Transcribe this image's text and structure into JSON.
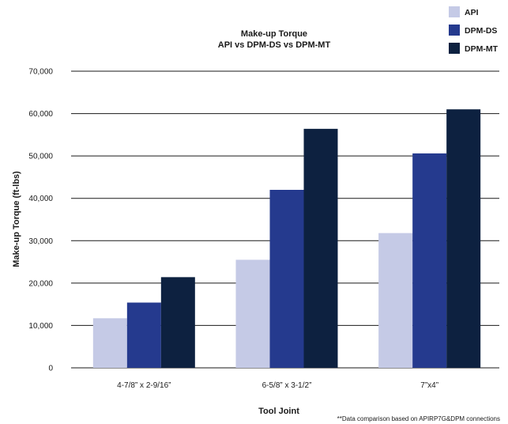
{
  "chart_data": {
    "type": "bar",
    "title": [
      "Make-up Torque",
      "API vs DPM-DS vs DPM-MT"
    ],
    "xlabel": "Tool Joint",
    "ylabel": "Make-up Torque (ft-lbs)",
    "categories": [
      "4-7/8” x 2-9/16”",
      "6-5/8” x 3-1/2”",
      "7”x4”"
    ],
    "series": [
      {
        "name": "API",
        "color": "#c5cae6",
        "values": [
          11700,
          25500,
          31800
        ]
      },
      {
        "name": "DPM-DS",
        "color": "#253a8e",
        "values": [
          15400,
          42000,
          50600
        ]
      },
      {
        "name": "DPM-MT",
        "color": "#0d2140",
        "values": [
          21400,
          56400,
          61000
        ]
      }
    ],
    "ylim": [
      0,
      70000
    ],
    "yticks": [
      0,
      10000,
      20000,
      30000,
      40000,
      50000,
      60000,
      70000
    ],
    "ytick_labels": [
      "0",
      "10,000",
      "20,000",
      "30,000",
      "40,000",
      "50,000",
      "60,000",
      "70,000"
    ],
    "grid": true,
    "legend_position": "top-right",
    "footnote": "**Data comparison based on APIRP7G&DPM connections"
  }
}
